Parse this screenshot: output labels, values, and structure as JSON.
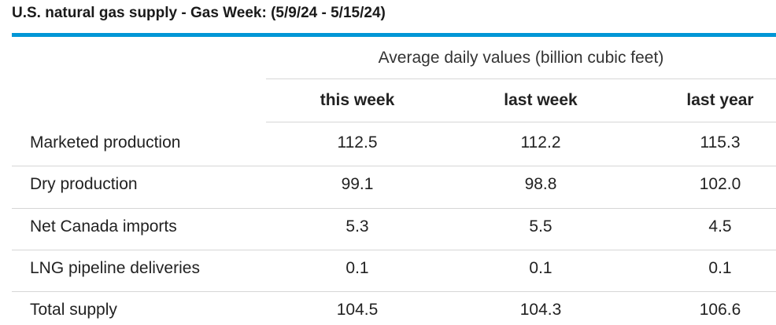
{
  "header": {
    "title": "U.S. natural gas supply - Gas Week: (5/9/24 - 5/15/24)"
  },
  "table": {
    "group_header": "Average daily values (billion cubic feet)",
    "columns": [
      "this week",
      "last week",
      "last year"
    ],
    "rows": [
      [
        "Marketed production",
        "112.5",
        "112.2",
        "115.3"
      ],
      [
        "Dry production",
        "99.1",
        "98.8",
        "102.0"
      ],
      [
        "Net Canada imports",
        "5.3",
        "5.5",
        "4.5"
      ],
      [
        "LNG pipeline deliveries",
        "0.1",
        "0.1",
        "0.1"
      ],
      [
        "Total supply",
        "104.5",
        "104.3",
        "106.6"
      ]
    ]
  }
}
